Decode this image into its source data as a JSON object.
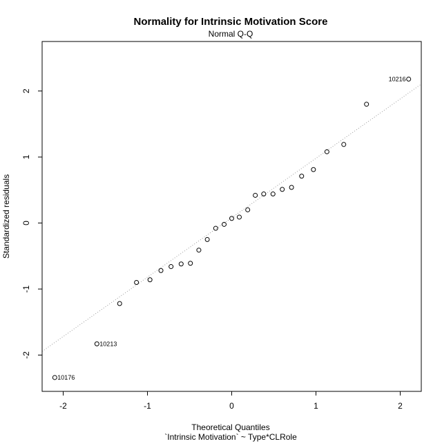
{
  "chart_data": {
    "type": "scatter",
    "title": "Normality for Intrinsic Motivation Score",
    "subtitle": "Normal Q-Q",
    "xlabel": "Theoretical Quantiles",
    "xlabel2": "`Intrinsic Motivation` ~ Type*CLRole",
    "ylabel": "Standardized residuals",
    "xlim": [
      -2.25,
      2.25
    ],
    "ylim": [
      -2.55,
      2.75
    ],
    "x_ticks": [
      -2,
      -1,
      0,
      1,
      2
    ],
    "y_ticks": [
      -2,
      -1,
      0,
      1,
      2
    ],
    "x_tick_labels": [
      "-2",
      "-1",
      "0",
      "1",
      "2"
    ],
    "y_tick_labels": [
      "-2",
      "-1",
      "0",
      "1",
      "2"
    ],
    "reference_line": {
      "intercept": 0.08,
      "slope": 0.9,
      "style": "dotted",
      "color": "#999999"
    },
    "grid": false,
    "points": [
      {
        "x": -2.1,
        "y": -2.34,
        "label": "10176"
      },
      {
        "x": -1.6,
        "y": -1.83,
        "label": "10213"
      },
      {
        "x": -1.33,
        "y": -1.22
      },
      {
        "x": -1.13,
        "y": -0.9
      },
      {
        "x": -0.97,
        "y": -0.86
      },
      {
        "x": -0.84,
        "y": -0.72
      },
      {
        "x": -0.72,
        "y": -0.66
      },
      {
        "x": -0.6,
        "y": -0.62
      },
      {
        "x": -0.49,
        "y": -0.61
      },
      {
        "x": -0.39,
        "y": -0.41
      },
      {
        "x": -0.29,
        "y": -0.25
      },
      {
        "x": -0.19,
        "y": -0.08
      },
      {
        "x": -0.09,
        "y": -0.02
      },
      {
        "x": 0.0,
        "y": 0.07
      },
      {
        "x": 0.09,
        "y": 0.09
      },
      {
        "x": 0.19,
        "y": 0.2
      },
      {
        "x": 0.28,
        "y": 0.42
      },
      {
        "x": 0.38,
        "y": 0.44
      },
      {
        "x": 0.49,
        "y": 0.44
      },
      {
        "x": 0.6,
        "y": 0.51
      },
      {
        "x": 0.71,
        "y": 0.54
      },
      {
        "x": 0.83,
        "y": 0.71
      },
      {
        "x": 0.97,
        "y": 0.81
      },
      {
        "x": 1.13,
        "y": 1.08
      },
      {
        "x": 1.33,
        "y": 1.19
      },
      {
        "x": 1.6,
        "y": 1.8
      },
      {
        "x": 2.1,
        "y": 2.18,
        "label": "10216"
      }
    ]
  }
}
